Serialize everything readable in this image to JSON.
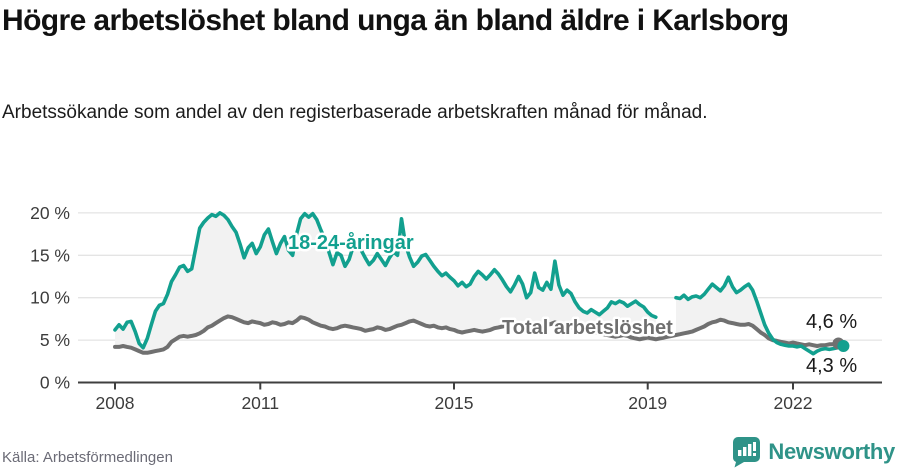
{
  "header": {
    "title": "Högre arbetslöshet bland unga än bland äldre i Karlsborg",
    "subtitle": "Arbetssökande som andel av den registerbaserade arbetskraften månad för månad."
  },
  "footer": {
    "source": "Källa: Arbetsförmedlingen",
    "brand": "Newsworthy",
    "brand_icon": "bar-chart-speech-bubble-icon",
    "brand_color": "#2f9388"
  },
  "chart_data": {
    "type": "line",
    "title": "Högre arbetslöshet bland unga än bland äldre i Karlsborg",
    "x_unit": "month",
    "x_range_start": "2008-01",
    "x_range_end": "2023-01",
    "x_ticks": [
      {
        "label": "2008",
        "month_index": 0
      },
      {
        "label": "2011",
        "month_index": 36
      },
      {
        "label": "2015",
        "month_index": 84
      },
      {
        "label": "2019",
        "month_index": 132
      },
      {
        "label": "2022",
        "month_index": 168
      }
    ],
    "ylim": [
      0,
      21
    ],
    "y_ticks": [
      0,
      5,
      10,
      15,
      20
    ],
    "y_tick_labels": [
      "0 %",
      "5 %",
      "10 %",
      "15 %",
      "20 %"
    ],
    "grid": "horizontal",
    "area_fill_between_series": "#f2f2f2",
    "note": "18-24 series has a data gap Apr-Jul 2019",
    "series": [
      {
        "name": "18-24-åringar",
        "color": "#12a08f",
        "end_label": "4,3 %",
        "last_value": 4.3,
        "values": [
          6.2,
          6.8,
          6.3,
          7.1,
          7.2,
          6.0,
          4.6,
          4.1,
          5.2,
          6.8,
          8.4,
          9.1,
          9.3,
          10.4,
          11.9,
          12.7,
          13.6,
          13.8,
          13.1,
          13.4,
          15.8,
          18.2,
          18.9,
          19.4,
          19.8,
          19.6,
          20.0,
          19.7,
          19.2,
          18.4,
          17.7,
          16.3,
          14.7,
          15.9,
          16.4,
          15.2,
          16.0,
          17.4,
          18.1,
          16.6,
          15.2,
          16.4,
          17.2,
          15.6,
          15.0,
          17.5,
          19.3,
          19.9,
          19.5,
          19.9,
          19.2,
          18.0,
          16.9,
          15.4,
          13.9,
          15.3,
          15.0,
          13.7,
          14.5,
          16.0,
          16.4,
          15.6,
          14.7,
          13.9,
          14.4,
          15.2,
          14.5,
          13.8,
          14.7,
          15.4,
          15.0,
          19.3,
          16.2,
          14.8,
          13.7,
          14.2,
          14.9,
          15.1,
          14.4,
          13.7,
          13.1,
          12.6,
          12.9,
          12.4,
          12.0,
          11.4,
          11.8,
          11.3,
          11.6,
          12.5,
          13.1,
          12.7,
          12.2,
          12.7,
          13.3,
          12.8,
          12.1,
          11.3,
          10.7,
          11.5,
          12.5,
          11.6,
          10.0,
          10.6,
          12.9,
          11.2,
          10.9,
          11.8,
          11.0,
          14.3,
          11.5,
          10.3,
          10.9,
          10.5,
          9.5,
          8.8,
          8.4,
          8.2,
          8.6,
          8.3,
          8.0,
          8.4,
          8.8,
          9.5,
          9.3,
          9.6,
          9.4,
          9.0,
          9.3,
          9.6,
          9.2,
          8.9,
          8.3,
          7.9,
          7.7,
          null,
          null,
          null,
          null,
          10.0,
          9.9,
          10.3,
          9.8,
          10.1,
          10.2,
          10.0,
          10.4,
          11.0,
          11.6,
          11.2,
          10.8,
          11.4,
          12.4,
          11.3,
          10.6,
          10.9,
          11.3,
          11.6,
          10.9,
          9.6,
          8.2,
          6.8,
          5.8,
          5.1,
          4.7,
          4.5,
          4.4,
          4.3,
          4.3,
          4.2,
          4.3,
          4.0,
          3.7,
          3.4,
          3.7,
          3.9,
          4.0,
          3.9,
          4.0,
          4.1,
          4.3
        ]
      },
      {
        "name": "Total arbetslöshet",
        "color": "#707070",
        "end_label": "4,6 %",
        "last_value": 4.6,
        "values": [
          4.2,
          4.2,
          4.3,
          4.2,
          4.1,
          3.9,
          3.7,
          3.5,
          3.5,
          3.6,
          3.7,
          3.8,
          3.9,
          4.2,
          4.8,
          5.1,
          5.4,
          5.5,
          5.4,
          5.5,
          5.6,
          5.8,
          6.1,
          6.5,
          6.7,
          7.0,
          7.3,
          7.6,
          7.8,
          7.7,
          7.5,
          7.3,
          7.1,
          7.0,
          7.2,
          7.1,
          7.0,
          6.8,
          6.9,
          7.1,
          7.0,
          6.8,
          6.9,
          7.1,
          7.0,
          7.3,
          7.7,
          7.6,
          7.4,
          7.1,
          6.9,
          6.7,
          6.6,
          6.4,
          6.3,
          6.4,
          6.6,
          6.7,
          6.6,
          6.5,
          6.4,
          6.3,
          6.1,
          6.2,
          6.3,
          6.5,
          6.4,
          6.2,
          6.3,
          6.5,
          6.7,
          6.8,
          7.0,
          7.2,
          7.3,
          7.1,
          6.9,
          6.7,
          6.6,
          6.7,
          6.5,
          6.4,
          6.5,
          6.3,
          6.2,
          6.0,
          5.9,
          6.0,
          6.1,
          6.2,
          6.1,
          6.0,
          6.1,
          6.2,
          6.4,
          6.5,
          6.6,
          6.7,
          6.5,
          6.4,
          6.5,
          6.7,
          6.8,
          6.6,
          6.4,
          6.5,
          6.7,
          6.8,
          6.9,
          7.1,
          6.9,
          6.7,
          6.5,
          6.4,
          6.6,
          6.5,
          6.3,
          6.1,
          6.0,
          5.9,
          5.8,
          5.7,
          5.6,
          5.5,
          5.4,
          5.5,
          5.6,
          5.5,
          5.3,
          5.2,
          5.1,
          5.2,
          5.3,
          5.2,
          5.1,
          5.2,
          5.3,
          5.4,
          5.5,
          5.6,
          5.7,
          5.8,
          5.9,
          6.0,
          6.2,
          6.4,
          6.6,
          6.9,
          7.1,
          7.2,
          7.4,
          7.3,
          7.1,
          7.0,
          6.9,
          6.8,
          6.8,
          6.9,
          6.7,
          6.3,
          5.9,
          5.6,
          5.2,
          5.0,
          4.9,
          4.8,
          4.7,
          4.6,
          4.7,
          4.6,
          4.5,
          4.4,
          4.5,
          4.4,
          4.3,
          4.4,
          4.4,
          4.5,
          4.5,
          4.6,
          4.6
        ]
      }
    ],
    "annotations": {
      "young_series_label": "18-24-åringar",
      "total_series_label": "Total arbetslöshet",
      "end_label_top": "4,6 %",
      "end_label_bottom": "4,3 %"
    }
  }
}
